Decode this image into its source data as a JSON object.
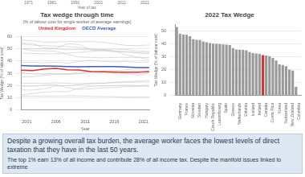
{
  "top_fragment": {
    "x_axis_title": "Year of tax",
    "x_tick_labels": [
      "1971",
      "1981",
      "1991",
      "2001",
      "2011",
      "2021"
    ]
  },
  "chart_data": [
    {
      "type": "line",
      "title": "Tax wedge through time",
      "subtitle": "(% of labour cost for single worker of average earnings)",
      "x_label": "Year",
      "y_label": "Tax Wedge (% of labour cost)",
      "x": [
        2000,
        2002,
        2004,
        2006,
        2008,
        2010,
        2012,
        2014,
        2016,
        2018,
        2020,
        2022
      ],
      "xlim": [
        2000,
        2022
      ],
      "xticks": [
        2001,
        2006,
        2011,
        2016,
        2021
      ],
      "ylim": [
        0,
        60
      ],
      "yticks": [
        0,
        10,
        20,
        30,
        40,
        50,
        60
      ],
      "grid": true,
      "series": [
        {
          "name": "United Kingdom",
          "color": "#e0302f",
          "values": [
            32.5,
            32.1,
            33.5,
            33.9,
            32.8,
            32.6,
            31.3,
            31.1,
            30.9,
            30.8,
            30.9,
            31.3
          ]
        },
        {
          "name": "OECD Average",
          "color": "#3a5fc8",
          "values": [
            36.3,
            35.9,
            36.0,
            35.8,
            35.5,
            35.3,
            35.4,
            35.5,
            35.4,
            35.1,
            34.6,
            34.6
          ]
        },
        {
          "color": "#c4c4c4",
          "values": [
            57.1,
            56.4,
            55.4,
            55.5,
            55.9,
            55.6,
            55.8,
            55.3,
            54.0,
            52.7,
            52.6,
            53.0
          ]
        },
        {
          "color": "#c4c4c4",
          "values": [
            53.9,
            53.0,
            52.5,
            52.2,
            51.8,
            50.9,
            49.8,
            49.4,
            49.7,
            49.4,
            48.1,
            47.8
          ]
        },
        {
          "color": "#c4c4c4",
          "values": [
            50.1,
            49.8,
            49.8,
            49.8,
            49.3,
            49.4,
            49.0,
            49.0,
            48.1,
            47.2,
            47.0,
            47.0
          ]
        },
        {
          "color": "#c4c4c4",
          "values": [
            46.6,
            46.1,
            45.9,
            45.9,
            46.5,
            47.1,
            47.8,
            48.3,
            47.7,
            47.9,
            46.5,
            45.9
          ]
        },
        {
          "color": "#c4c4c4",
          "values": [
            50.1,
            48.3,
            48.2,
            47.9,
            45.4,
            43.2,
            42.9,
            42.6,
            42.9,
            43.0,
            42.9,
            42.9
          ]
        },
        {
          "color": "#c4c4c4",
          "values": [
            54.6,
            54.2,
            50.7,
            50.2,
            54.1,
            53.4,
            49.0,
            49.0,
            48.2,
            45.0,
            43.1,
            41.2
          ]
        },
        {
          "color": "#c4c4c4",
          "values": [
            38.6,
            38.9,
            38.5,
            38.9,
            38.2,
            39.6,
            40.6,
            39.6,
            39.4,
            39.5,
            38.9,
            39.3
          ]
        },
        {
          "color": "#c4c4c4",
          "values": [
            27.0,
            27.1,
            28.3,
            29.2,
            29.5,
            30.9,
            31.4,
            31.6,
            32.1,
            32.7,
            32.6,
            32.6
          ]
        },
        {
          "color": "#c4c4c4",
          "values": [
            30.6,
            29.5,
            29.2,
            29.6,
            29.2,
            29.5,
            31.5,
            31.6,
            31.7,
            29.7,
            28.4,
            30.5
          ]
        },
        {
          "color": "#c4c4c4",
          "values": [
            16.4,
            16.3,
            17.3,
            19.8,
            20.0,
            20.6,
            21.4,
            22.0,
            22.7,
            23.2,
            23.6,
            24.2
          ]
        },
        {
          "color": "#c4c4c4",
          "values": [
            21.6,
            21.9,
            21.6,
            22.3,
            21.8,
            21.4,
            21.8,
            21.8,
            22.3,
            22.4,
            22.8,
            22.8
          ]
        },
        {
          "color": "#c4c4c4",
          "values": [
            12.3,
            13.5,
            14.6,
            15.2,
            15.0,
            17.9,
            19.4,
            19.7,
            19.9,
            20.3,
            19.9,
            20.2
          ]
        },
        {
          "color": "#c4c4c4",
          "values": [
            19.4,
            19.5,
            20.3,
            20.8,
            18.0,
            16.9,
            17.3,
            18.1,
            18.4,
            19.2,
            19.4,
            19.4
          ]
        },
        {
          "color": "#c4c4c4",
          "values": [
            11.3,
            11.2,
            11.4,
            11.4,
            11.6,
            11.5,
            11.2,
            11.0,
            10.8,
            10.5,
            10.6,
            10.6
          ]
        }
      ]
    },
    {
      "type": "bar",
      "title": "2022 Tax Wedge",
      "y_label": "Tax Wedge (% of labour cost)",
      "categories": [
        null,
        "Germany",
        null,
        "France",
        null,
        "Slovenia",
        null,
        "Sweden",
        null,
        "Hungary",
        null,
        "Czech Republic",
        null,
        "Luxembourg",
        null,
        "Spain",
        null,
        "Greece",
        null,
        "Netherlands",
        null,
        "Estonia",
        null,
        "Iceland",
        null,
        "Ireland",
        null,
        "Canada",
        null,
        "Costa Rica",
        null,
        "Korea",
        null,
        "Switzerland",
        null,
        "New Zealand",
        null,
        "Colombia"
      ],
      "values": [
        53.0,
        47.8,
        47.2,
        47.0,
        45.9,
        43.6,
        43.1,
        42.9,
        41.9,
        41.2,
        40.6,
        40.2,
        40.0,
        39.8,
        39.6,
        39.3,
        39.0,
        36.7,
        35.7,
        35.5,
        35.4,
        35.0,
        33.6,
        32.8,
        32.6,
        32.3,
        31.3,
        31.0,
        30.5,
        29.2,
        27.2,
        24.2,
        23.7,
        22.8,
        20.2,
        19.4,
        7.0,
        0.0
      ],
      "colors": [
        "#9a9a9a",
        "#9a9a9a",
        "#9a9a9a",
        "#9a9a9a",
        "#9a9a9a",
        "#9a9a9a",
        "#9a9a9a",
        "#9a9a9a",
        "#9a9a9a",
        "#9a9a9a",
        "#9a9a9a",
        "#9a9a9a",
        "#9a9a9a",
        "#9a9a9a",
        "#9a9a9a",
        "#9a9a9a",
        "#9a9a9a",
        "#9a9a9a",
        "#9a9a9a",
        "#9a9a9a",
        "#9a9a9a",
        "#9a9a9a",
        "#9a9a9a",
        "#9a9a9a",
        "#9a9a9a",
        "#9a9a9a",
        "#e0302f",
        "#9a9a9a",
        "#9a9a9a",
        "#9a9a9a",
        "#9a9a9a",
        "#9a9a9a",
        "#9a9a9a",
        "#9a9a9a",
        "#9a9a9a",
        "#9a9a9a",
        "#9a9a9a",
        "#9a9a9a"
      ],
      "ylim": [
        0,
        55
      ],
      "yticks": [
        0,
        10,
        20,
        30,
        40,
        50
      ],
      "grid": true
    }
  ],
  "text_box": {
    "headline": "Despite a growing overall tax burden, the average worker faces the lowest levels of direct taxation that they have in the last 50 years.",
    "body": "The top 1% earn 13% of all income and contribute 28% of all income tax. Despite the manifold issues linked to extreme"
  }
}
